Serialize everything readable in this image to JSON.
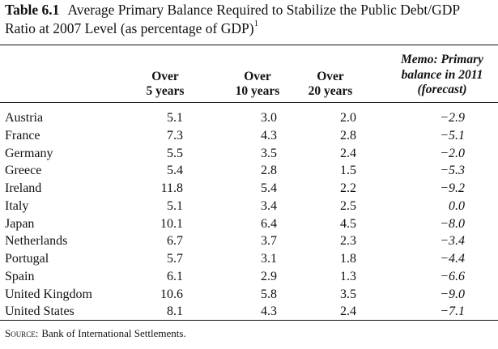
{
  "caption": {
    "label": "Table 6.1",
    "text": "Average Primary Balance Required to Stabilize the Public Debt/GDP Ratio at 2007 Level (as percentage of GDP)",
    "footnote_mark": "1"
  },
  "columns": {
    "c1": [
      "Over",
      "5 years"
    ],
    "c2": [
      "Over",
      "10 years"
    ],
    "c3": [
      "Over",
      "20 years"
    ],
    "memo": [
      "Memo: Primary",
      "balance in 2011",
      "(forecast)"
    ]
  },
  "rows": [
    {
      "country": "Austria",
      "v5": "5.1",
      "v10": "3.0",
      "v20": "2.0",
      "memo": "−2.9"
    },
    {
      "country": "France",
      "v5": "7.3",
      "v10": "4.3",
      "v20": "2.8",
      "memo": "−5.1"
    },
    {
      "country": "Germany",
      "v5": "5.5",
      "v10": "3.5",
      "v20": "2.4",
      "memo": "−2.0"
    },
    {
      "country": "Greece",
      "v5": "5.4",
      "v10": "2.8",
      "v20": "1.5",
      "memo": "−5.3"
    },
    {
      "country": "Ireland",
      "v5": "11.8",
      "v10": "5.4",
      "v20": "2.2",
      "memo": "−9.2"
    },
    {
      "country": "Italy",
      "v5": "5.1",
      "v10": "3.4",
      "v20": "2.5",
      "memo": "0.0"
    },
    {
      "country": "Japan",
      "v5": "10.1",
      "v10": "6.4",
      "v20": "4.5",
      "memo": "−8.0"
    },
    {
      "country": "Netherlands",
      "v5": "6.7",
      "v10": "3.7",
      "v20": "2.3",
      "memo": "−3.4"
    },
    {
      "country": "Portugal",
      "v5": "5.7",
      "v10": "3.1",
      "v20": "1.8",
      "memo": "−4.4"
    },
    {
      "country": "Spain",
      "v5": "6.1",
      "v10": "2.9",
      "v20": "1.3",
      "memo": "−6.6"
    },
    {
      "country": "United Kingdom",
      "v5": "10.6",
      "v10": "5.8",
      "v20": "3.5",
      "memo": "−9.0"
    },
    {
      "country": "United States",
      "v5": "8.1",
      "v10": "4.3",
      "v20": "2.4",
      "memo": "−7.1"
    }
  ],
  "source": {
    "label": "Source:",
    "text": "Bank of International Settlements."
  }
}
